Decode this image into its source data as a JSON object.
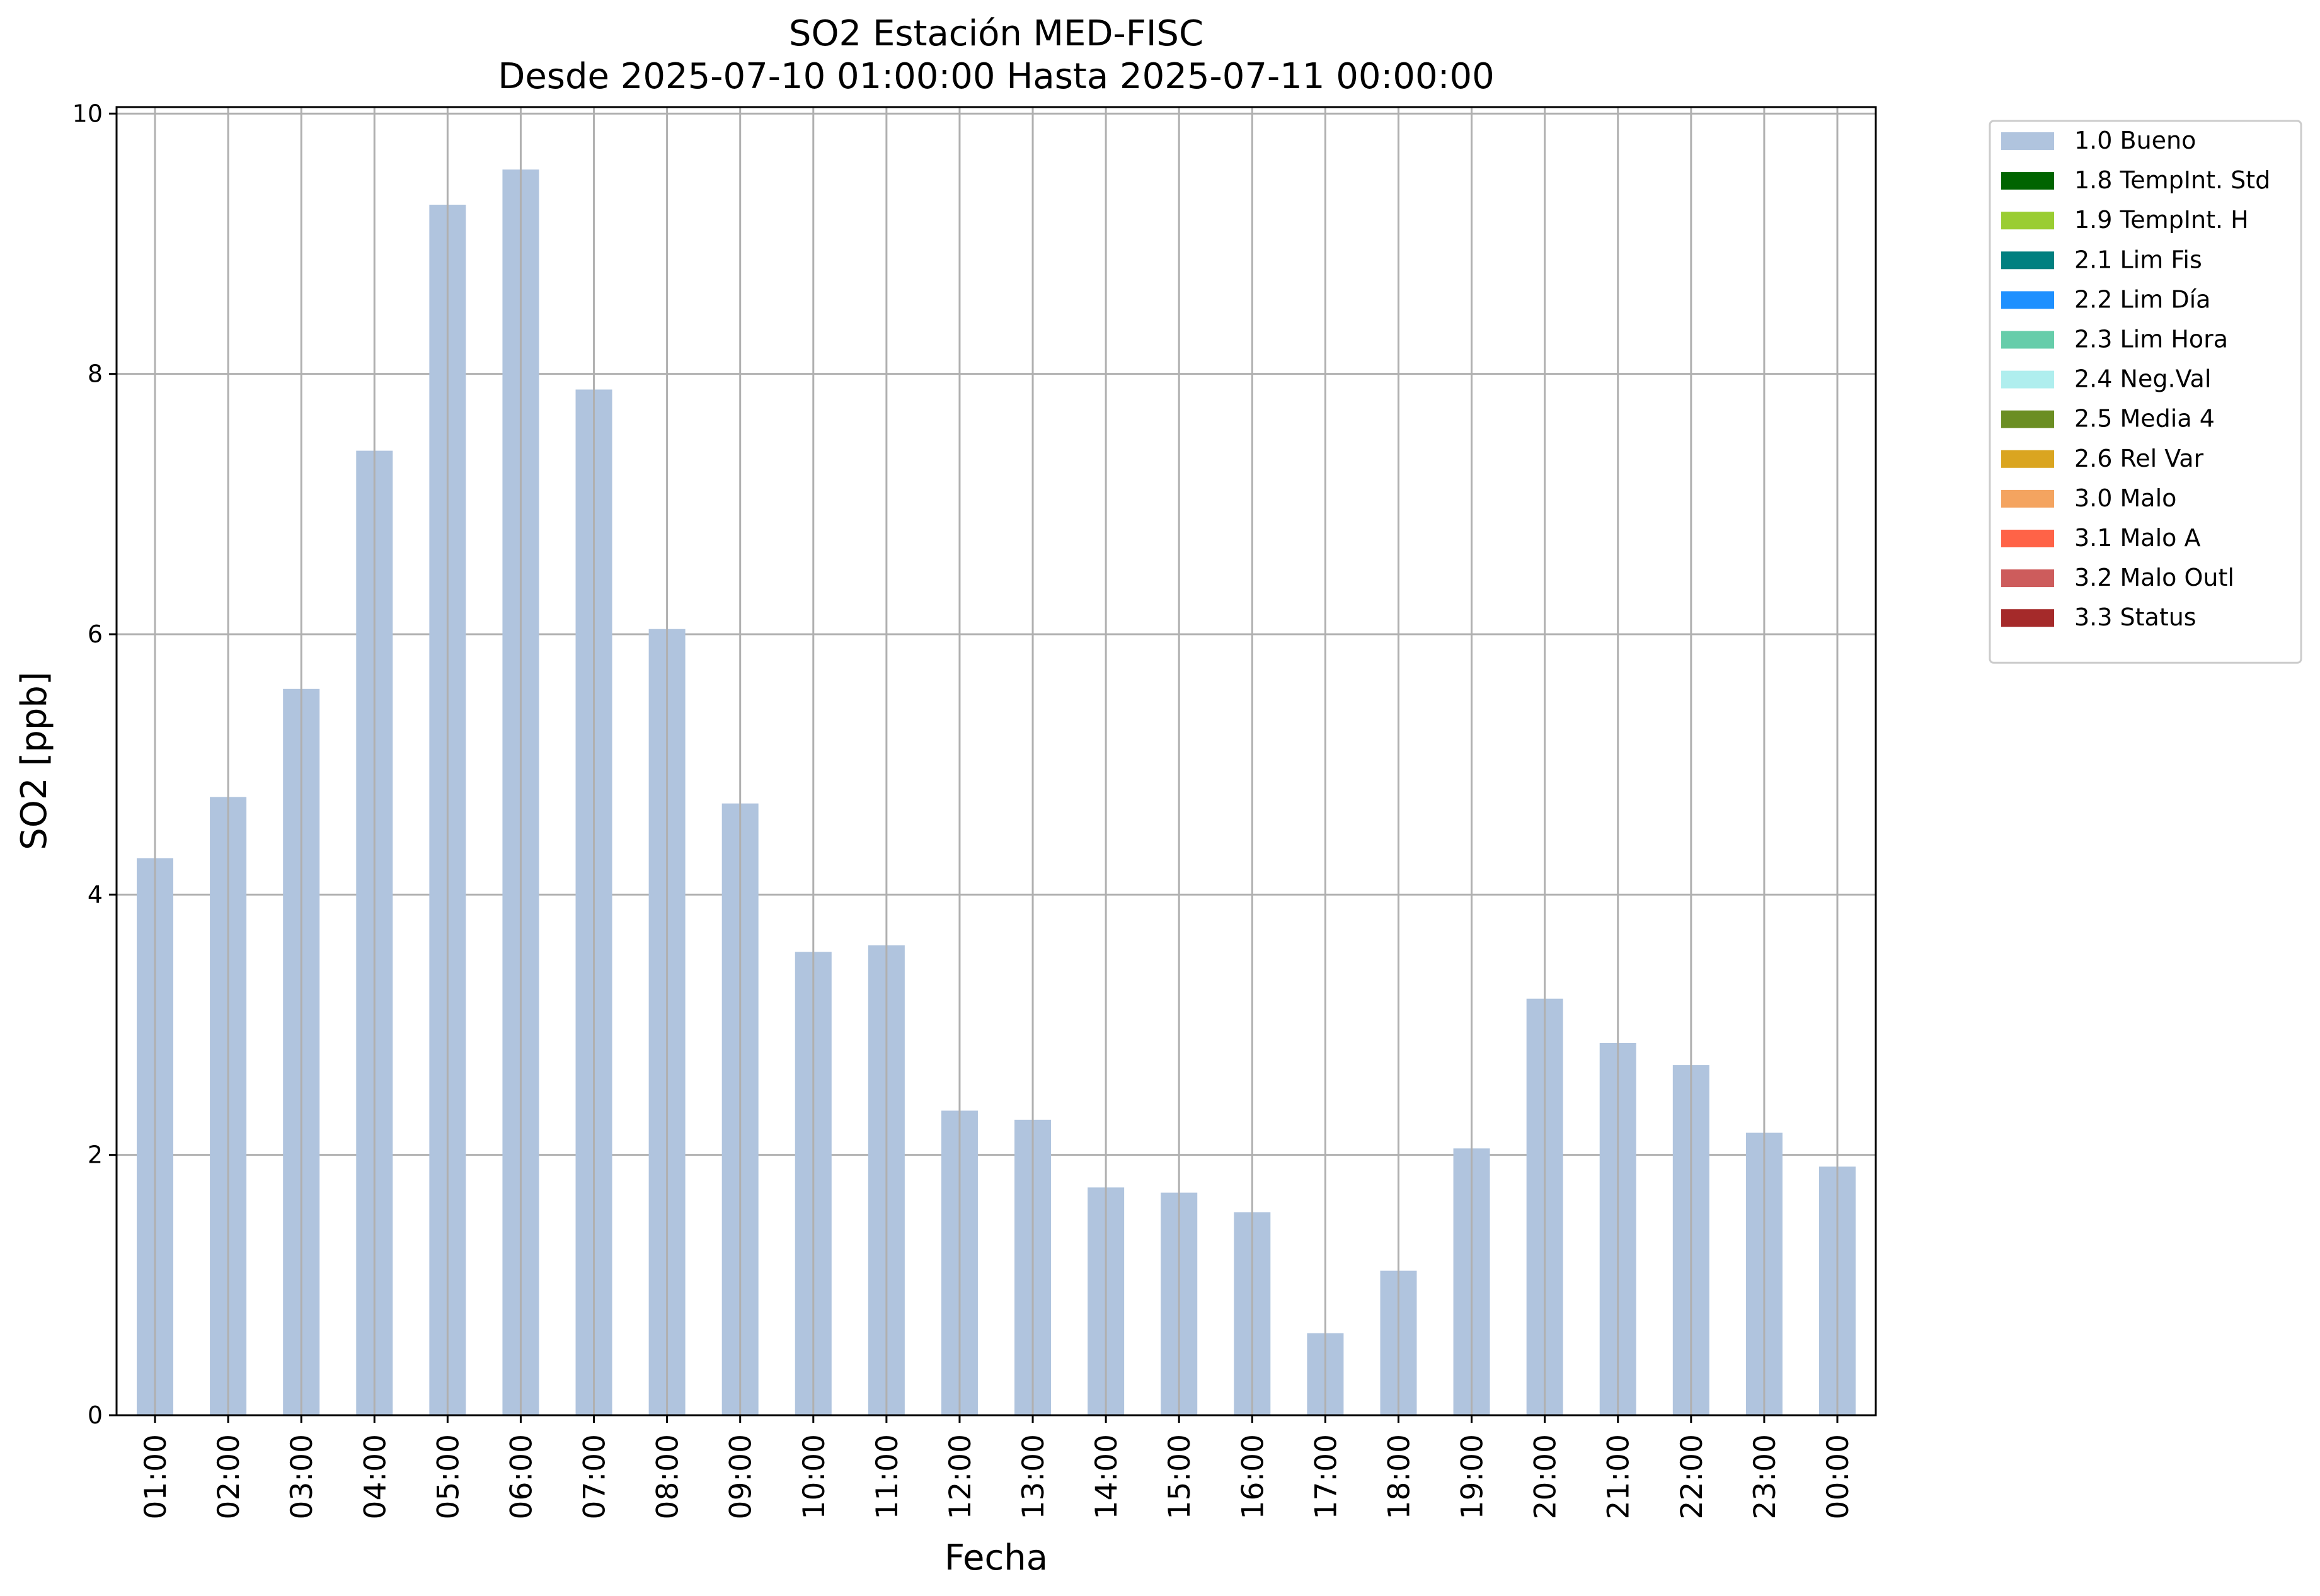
{
  "chart_data": {
    "type": "bar",
    "title": "SO2 Estación MED-FISC",
    "subtitle": "Desde 2025-07-10 01:00:00 Hasta 2025-07-11 00:00:00",
    "xlabel": "Fecha",
    "ylabel": "SO2 [ppb]",
    "ylim": [
      0,
      10.05
    ],
    "yticks": [
      "0",
      "2",
      "4",
      "6",
      "8",
      "10"
    ],
    "grid": true,
    "legend_position": "outside-top-right",
    "categories": [
      "01:00",
      "02:00",
      "03:00",
      "04:00",
      "05:00",
      "06:00",
      "07:00",
      "08:00",
      "09:00",
      "10:00",
      "11:00",
      "12:00",
      "13:00",
      "14:00",
      "15:00",
      "16:00",
      "17:00",
      "18:00",
      "19:00",
      "20:00",
      "21:00",
      "22:00",
      "23:00",
      "00:00"
    ],
    "series": [
      {
        "name": "1.0 Bueno",
        "color": "#b0c4de",
        "values": [
          4.28,
          4.75,
          5.58,
          7.41,
          9.3,
          9.57,
          7.88,
          6.04,
          4.7,
          3.56,
          3.61,
          2.34,
          2.27,
          1.75,
          1.71,
          1.56,
          0.63,
          1.11,
          2.05,
          3.2,
          2.86,
          2.69,
          2.17,
          1.91
        ]
      }
    ],
    "legend": [
      {
        "label": "1.0 Bueno",
        "color": "#b0c4de"
      },
      {
        "label": "1.8 TempInt. Std",
        "color": "#006400"
      },
      {
        "label": "1.9 TempInt. H",
        "color": "#9acd32"
      },
      {
        "label": "2.1 Lim Fis",
        "color": "#008080"
      },
      {
        "label": "2.2 Lim Día",
        "color": "#1e90ff"
      },
      {
        "label": "2.3 Lim Hora",
        "color": "#66cdaa"
      },
      {
        "label": "2.4 Neg.Val",
        "color": "#afeeee"
      },
      {
        "label": "2.5 Media 4",
        "color": "#6b8e23"
      },
      {
        "label": "2.6 Rel Var",
        "color": "#daa520"
      },
      {
        "label": "3.0 Malo",
        "color": "#f4a460"
      },
      {
        "label": "3.1 Malo A",
        "color": "#ff6347"
      },
      {
        "label": "3.2 Malo Outl",
        "color": "#cd5c5c"
      },
      {
        "label": "3.3 Status",
        "color": "#a52a2a"
      }
    ]
  }
}
